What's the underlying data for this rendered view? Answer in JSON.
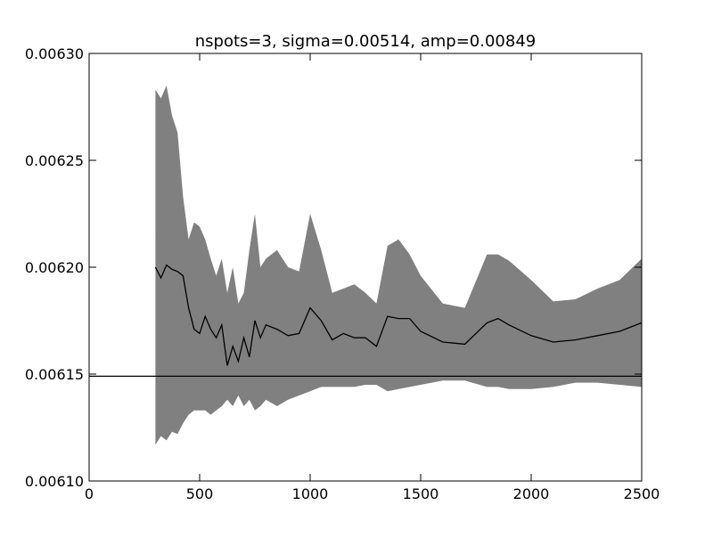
{
  "chart_data": {
    "type": "band-line",
    "title": "nspots=3, sigma=0.00514, amp=0.00849",
    "x": [
      300,
      325,
      350,
      375,
      400,
      425,
      450,
      475,
      500,
      525,
      550,
      575,
      600,
      625,
      650,
      675,
      700,
      725,
      750,
      775,
      800,
      850,
      900,
      950,
      1000,
      1050,
      1100,
      1150,
      1200,
      1250,
      1300,
      1350,
      1400,
      1450,
      1500,
      1600,
      1700,
      1800,
      1850,
      1900,
      2000,
      2100,
      2200,
      2300,
      2400,
      2500
    ],
    "line": {
      "color": "#000000",
      "values": [
        0.0062,
        0.006195,
        0.006201,
        0.006199,
        0.006198,
        0.006196,
        0.006181,
        0.006171,
        0.006169,
        0.006177,
        0.006171,
        0.006167,
        0.006173,
        0.006154,
        0.006163,
        0.006156,
        0.006167,
        0.006158,
        0.006175,
        0.006167,
        0.006173,
        0.006171,
        0.006168,
        0.006169,
        0.006181,
        0.006175,
        0.006166,
        0.006169,
        0.006167,
        0.006167,
        0.006163,
        0.006177,
        0.006176,
        0.006176,
        0.00617,
        0.006165,
        0.006164,
        0.006174,
        0.006176,
        0.006173,
        0.006168,
        0.006165,
        0.006166,
        0.006168,
        0.00617,
        0.006174
      ]
    },
    "band": {
      "color": "#808080",
      "upper": [
        0.006283,
        0.006279,
        0.006285,
        0.006271,
        0.006263,
        0.006233,
        0.006213,
        0.006221,
        0.006219,
        0.006213,
        0.006204,
        0.006196,
        0.006204,
        0.006188,
        0.0062,
        0.006183,
        0.006188,
        0.006208,
        0.006225,
        0.0062,
        0.006204,
        0.006208,
        0.0062,
        0.006198,
        0.006225,
        0.006208,
        0.006188,
        0.00619,
        0.006192,
        0.006188,
        0.006183,
        0.00621,
        0.006213,
        0.006206,
        0.006196,
        0.006183,
        0.006181,
        0.006206,
        0.006206,
        0.006203,
        0.006194,
        0.006184,
        0.006185,
        0.00619,
        0.006194,
        0.006204
      ],
      "lower": [
        0.006117,
        0.006121,
        0.006119,
        0.006123,
        0.006122,
        0.006127,
        0.006131,
        0.006133,
        0.006133,
        0.006133,
        0.006131,
        0.006133,
        0.006135,
        0.006138,
        0.006135,
        0.00614,
        0.006135,
        0.006138,
        0.006133,
        0.006135,
        0.006138,
        0.006135,
        0.006138,
        0.00614,
        0.006142,
        0.006144,
        0.006144,
        0.006144,
        0.006144,
        0.006145,
        0.006145,
        0.006142,
        0.006143,
        0.006144,
        0.006145,
        0.006147,
        0.006147,
        0.006144,
        0.006144,
        0.006143,
        0.006143,
        0.006144,
        0.006146,
        0.006146,
        0.006145,
        0.006144
      ]
    },
    "hline": {
      "value": 0.006149,
      "color": "#000000"
    },
    "xlim": [
      0,
      2500
    ],
    "xticks": [
      0,
      500,
      1000,
      1500,
      2000,
      2500
    ],
    "ylim": [
      0.0061,
      0.0063
    ],
    "yticks": [
      {
        "value": 0.0061,
        "label": "0.00610"
      },
      0.00615,
      {
        "value": 0.0062,
        "label": "0.00620"
      },
      0.00625,
      {
        "value": 0.0063,
        "label": "0.00630"
      }
    ]
  }
}
